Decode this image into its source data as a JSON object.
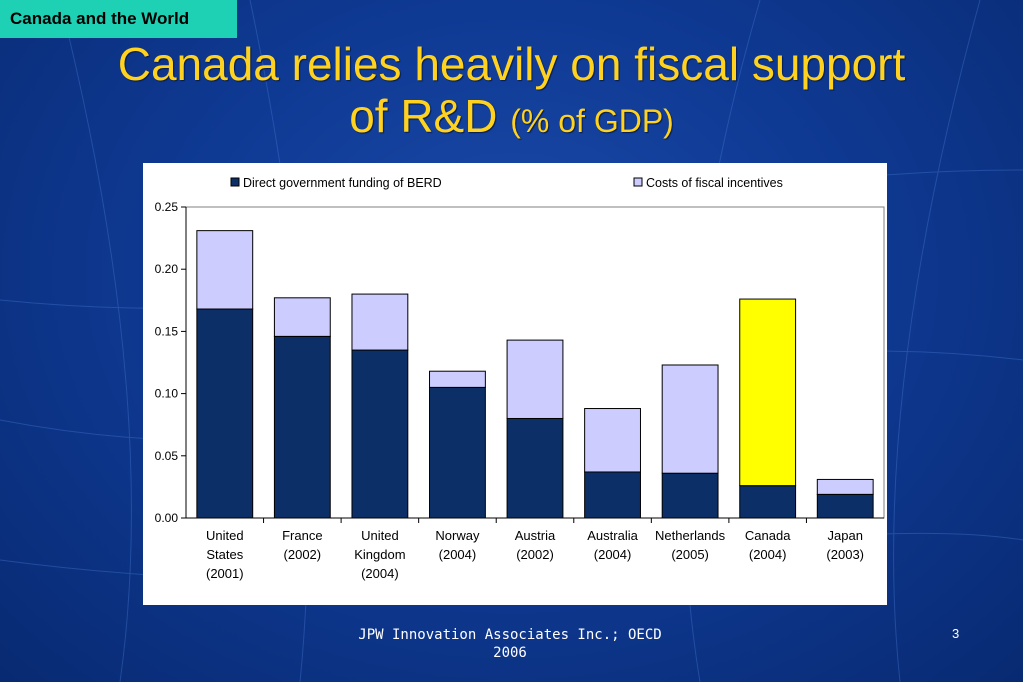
{
  "slide": {
    "tag": "Canada and the World",
    "title_main_line1": "Canada relies heavily on fiscal support",
    "title_main_line2": "of R&D",
    "title_suffix": "(% of GDP)",
    "footer_line1": "JPW Innovation Associates Inc.; OECD",
    "footer_line2": "2006",
    "page_number": "3"
  },
  "colors": {
    "direct": "#0b2f66",
    "fiscal": "#ccccff",
    "highlight": "#ffff00",
    "title": "#ffd21f",
    "tag_bg": "#1fd1b4"
  },
  "chart_data": {
    "type": "bar",
    "stacked": true,
    "categories": [
      [
        "United",
        "States",
        "(2001)"
      ],
      [
        "France",
        "(2002)"
      ],
      [
        "United",
        "Kingdom",
        "(2004)"
      ],
      [
        "Norway",
        "(2004)"
      ],
      [
        "Austria",
        "(2002)"
      ],
      [
        "Australia",
        "(2004)"
      ],
      [
        "Netherlands",
        "(2005)"
      ],
      [
        "Canada",
        "(2004)"
      ],
      [
        "Japan",
        "(2003)"
      ]
    ],
    "series": [
      {
        "name": "Direct government funding of BERD",
        "values": [
          0.168,
          0.146,
          0.135,
          0.105,
          0.08,
          0.037,
          0.036,
          0.026,
          0.019
        ]
      },
      {
        "name": "Costs of fiscal incentives",
        "values": [
          0.063,
          0.031,
          0.045,
          0.013,
          0.063,
          0.051,
          0.087,
          0.15,
          0.012
        ]
      }
    ],
    "highlight_index": 7,
    "ylim": [
      0,
      0.25
    ],
    "yticks": [
      "0.00",
      "0.05",
      "0.10",
      "0.15",
      "0.20",
      "0.25"
    ],
    "legend_position": "top",
    "grid": false
  }
}
